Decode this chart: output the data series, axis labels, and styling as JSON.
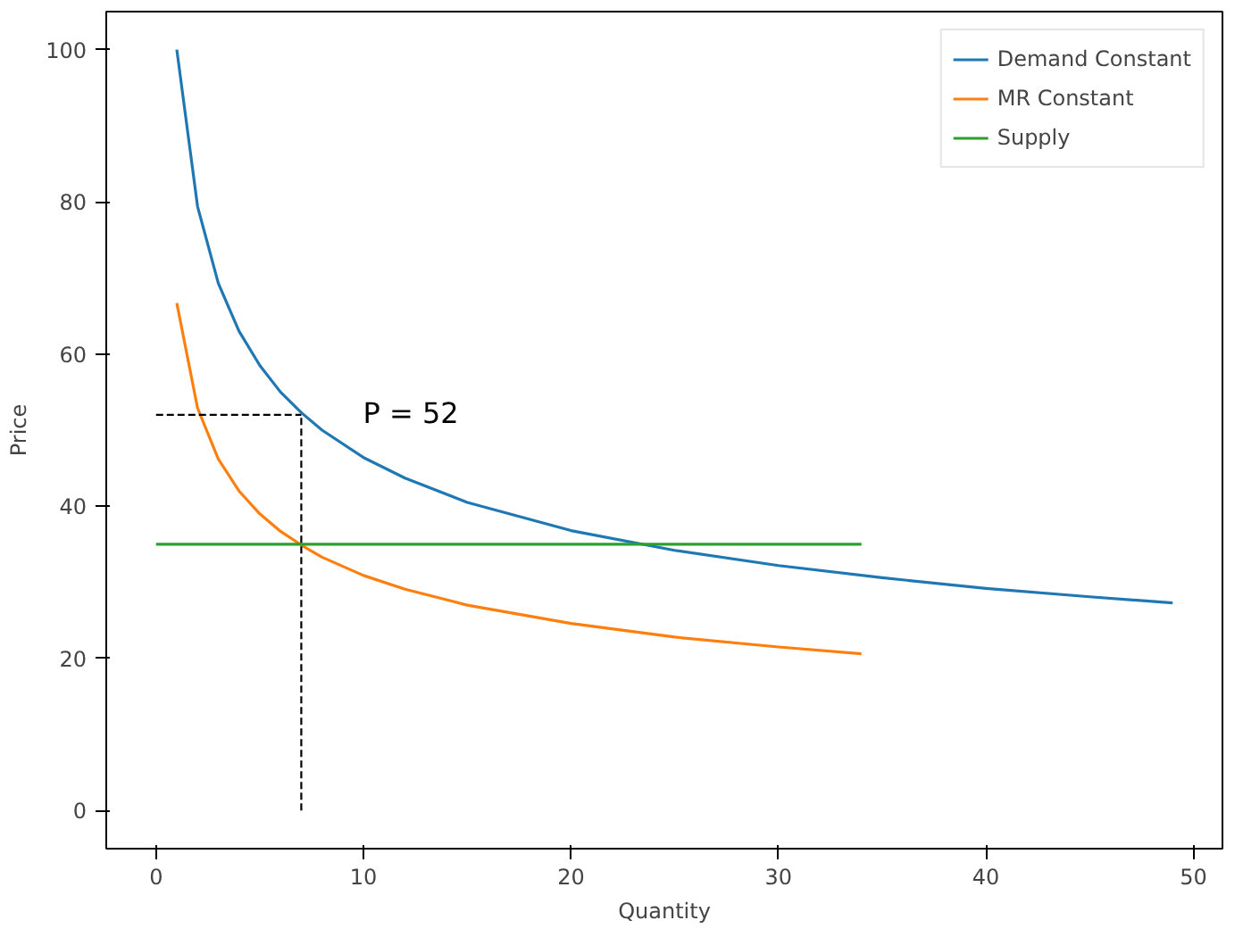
{
  "chart_data": {
    "type": "line",
    "xlabel": "Quantity",
    "ylabel": "Price",
    "xlim": [
      -2.4,
      51.4
    ],
    "ylim": [
      -5,
      105
    ],
    "xticks": [
      0,
      10,
      20,
      30,
      40,
      50
    ],
    "yticks": [
      0,
      20,
      40,
      60,
      80,
      100
    ],
    "grid": false,
    "legend": "top right",
    "line_style": "solid",
    "marker": "none",
    "series": [
      {
        "name": "Demand Constant",
        "color": "#1f77b4",
        "x": [
          1,
          2,
          3,
          4,
          5,
          6,
          7,
          8,
          10,
          12,
          15,
          20,
          25,
          30,
          35,
          40,
          45,
          49
        ],
        "values": [
          100,
          79.4,
          69.3,
          63.0,
          58.5,
          55.0,
          52.3,
          50.0,
          46.4,
          43.7,
          40.5,
          36.8,
          34.2,
          32.2,
          30.6,
          29.2,
          28.1,
          27.3
        ]
      },
      {
        "name": "MR Constant",
        "color": "#ff7f0e",
        "x": [
          1,
          2,
          3,
          4,
          5,
          6,
          7,
          8,
          10,
          12,
          15,
          20,
          25,
          30,
          34
        ],
        "values": [
          66.7,
          52.9,
          46.2,
          42.0,
          39.0,
          36.7,
          34.9,
          33.3,
          30.9,
          29.1,
          27.0,
          24.6,
          22.8,
          21.5,
          20.6
        ]
      },
      {
        "name": "Supply",
        "color": "#2ca02c",
        "x": [
          0,
          34
        ],
        "values": [
          35,
          35
        ]
      },
      {
        "color": "#000000",
        "line_style": "dashed",
        "x": [
          0,
          7
        ],
        "values": [
          52,
          52
        ]
      },
      {
        "color": "#000000",
        "line_style": "dashed",
        "x": [
          7,
          7
        ],
        "values": [
          0,
          52
        ]
      }
    ],
    "annotations": [
      "P =  52"
    ]
  }
}
